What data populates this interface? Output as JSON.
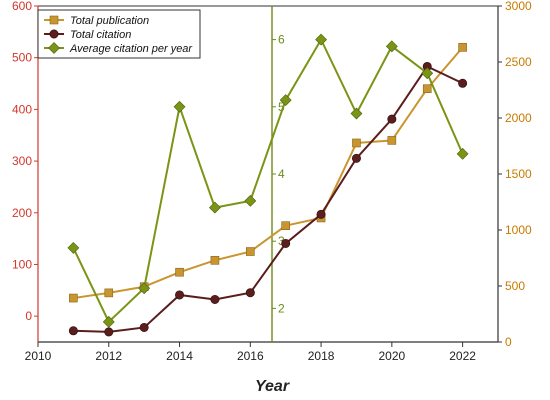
{
  "chart_data": {
    "type": "line",
    "xlabel": "Year",
    "x_ticks": [
      "2010",
      "2012",
      "2014",
      "2016",
      "2018",
      "2020",
      "2022"
    ],
    "xlim": [
      2010,
      2023
    ],
    "x": [
      2011,
      2012,
      2013,
      2014,
      2015,
      2016,
      2017,
      2018,
      2019,
      2020,
      2021,
      2022
    ],
    "axes": {
      "left": {
        "ylim": [
          -50,
          600
        ],
        "ticks": [
          "0",
          "100",
          "200",
          "300",
          "400",
          "500",
          "600"
        ],
        "color": "#d4372c"
      },
      "middle": {
        "ylim": [
          1.5,
          6.5
        ],
        "ticks": [
          "2",
          "3",
          "4",
          "5",
          "6"
        ],
        "color": "#6b8c1a"
      },
      "right": {
        "ylim": [
          0,
          3000
        ],
        "ticks": [
          "0",
          "500",
          "1000",
          "1500",
          "2000",
          "2500",
          "3000"
        ],
        "color": "#c87a00"
      }
    },
    "series": [
      {
        "name": "Total publication",
        "axis": "left",
        "color": "#c9952f",
        "marker": "square",
        "values": [
          35,
          45,
          57,
          85,
          108,
          125,
          175,
          190,
          335,
          340,
          440,
          520
        ]
      },
      {
        "name": "Total citation",
        "axis": "right",
        "color": "#5b1d1d",
        "marker": "circle",
        "values": [
          100,
          90,
          130,
          420,
          380,
          440,
          880,
          1140,
          1640,
          1990,
          2460,
          2310
        ]
      },
      {
        "name": "Average citation per year",
        "axis": "middle",
        "color": "#7a9416",
        "marker": "diamond",
        "values": [
          2.9,
          1.8,
          2.3,
          5.0,
          3.5,
          3.6,
          5.1,
          6.0,
          4.9,
          5.9,
          5.5,
          4.3
        ]
      }
    ],
    "legend": "top-left"
  }
}
